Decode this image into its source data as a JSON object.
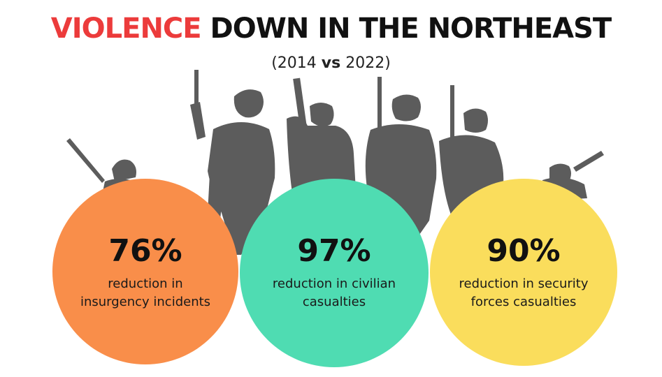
{
  "header": {
    "title_accent": "VIOLENCE",
    "title_rest": "DOWN IN THE NORTHEAST",
    "subtitle_open": "(2014",
    "subtitle_vs": "vs",
    "subtitle_close": "2022)"
  },
  "stats": [
    {
      "value": "76%",
      "desc_line1": "reduction in",
      "desc_line2": "insurgency incidents",
      "color": "#f98e4a"
    },
    {
      "value": "97%",
      "desc_line1": "reduction in civilian",
      "desc_line2": "casualties",
      "color": "#4fdcb2"
    },
    {
      "value": "90%",
      "desc_line1": "reduction in security",
      "desc_line2": "forces casualties",
      "color": "#fadd5c"
    }
  ],
  "colors": {
    "accent": "#ec3b3b",
    "silhouette": "#5c5c5c"
  },
  "decoration": {
    "background_icon": "soldier-silhouettes"
  }
}
